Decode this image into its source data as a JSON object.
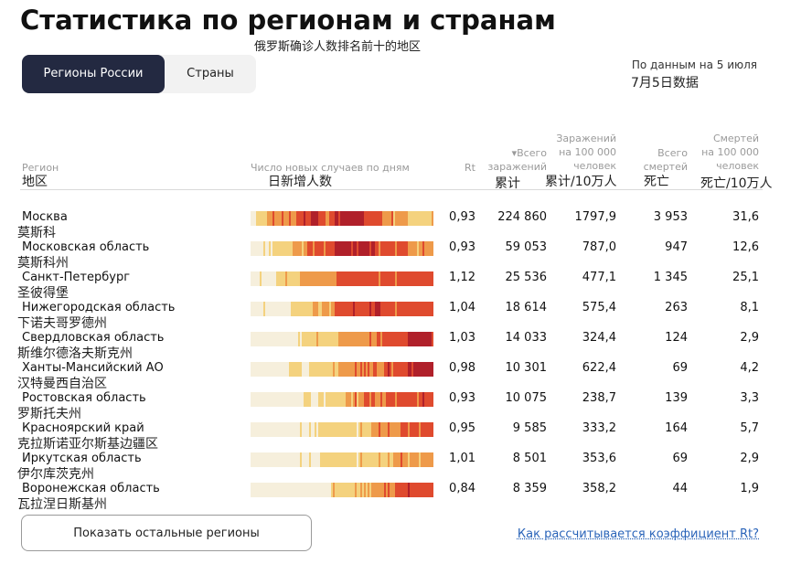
{
  "title": "Статистика по регионам и странам",
  "subtitle_cn": "俄罗斯确诊人数排名前十的地区",
  "tabs": [
    {
      "label": "Регионы России",
      "active": true
    },
    {
      "label": "Страны",
      "active": false
    }
  ],
  "date_note": "По данным на 5 июля",
  "date_note_cn": "7月5日数据",
  "columns": {
    "region": "Регион",
    "region_cn": "地区",
    "daily": "Число новых случаев по дням",
    "daily_cn": "日新增人数",
    "rt": "Rt",
    "total_line1": "▾Всего",
    "total_line2": "заражений",
    "total_cn": "累计",
    "per100k_line1": "Заражений",
    "per100k_line2": "на 100 000",
    "per100k_line3": "человек",
    "per100k_cn": "累计/10万人",
    "deaths_line1": "Всего",
    "deaths_line2": "смертей",
    "deaths_cn": "死亡",
    "dper100k_line1": "Смертей",
    "dper100k_line2": "на 100 000",
    "dper100k_line3": "человек",
    "dper100k_cn": "死亡/10万人"
  },
  "colors": {
    "light": "#f6efdc",
    "yellow": "#f4d27e",
    "orange": "#ee9a4a",
    "red": "#df4a2e",
    "dark": "#b0202a"
  },
  "rows": [
    {
      "name": "Москва",
      "name_cn": "莫斯科",
      "rt": "0,93",
      "total": "224 860",
      "per100k": "1797,9",
      "deaths": "3 953",
      "dper100k": "31,6",
      "profile": [
        0,
        1,
        2,
        2,
        2,
        3,
        3,
        4,
        3,
        3,
        4,
        4,
        4,
        3,
        3,
        2,
        2,
        2,
        1,
        1,
        1
      ]
    },
    {
      "name": "Московская область",
      "name_cn": "莫斯科州",
      "rt": "0,93",
      "total": "59 053",
      "per100k": "787,0",
      "deaths": "947",
      "dper100k": "12,6",
      "profile": [
        0,
        0,
        1,
        1,
        1,
        2,
        2,
        3,
        3,
        3,
        4,
        4,
        4,
        4,
        3,
        3,
        3,
        3,
        2,
        2,
        2
      ]
    },
    {
      "name": "Санкт-Петербург",
      "name_cn": "圣彼得堡",
      "rt": "1,12",
      "total": "25 536",
      "per100k": "477,1",
      "deaths": "1 345",
      "dper100k": "25,1",
      "profile": [
        0,
        0,
        0,
        1,
        1,
        1,
        2,
        2,
        2,
        2,
        3,
        3,
        3,
        3,
        3,
        3,
        3,
        3,
        3,
        3,
        3
      ]
    },
    {
      "name": "Нижегородская область",
      "name_cn": "下诺夫哥罗德州",
      "rt": "1,04",
      "total": "18 614",
      "per100k": "575,4",
      "deaths": "263",
      "dper100k": "8,1",
      "profile": [
        0,
        0,
        0,
        0,
        0,
        1,
        1,
        2,
        2,
        2,
        3,
        3,
        3,
        3,
        4,
        3,
        3,
        3,
        3,
        3,
        3
      ]
    },
    {
      "name": "Свердловская область",
      "name_cn": "斯维尔德洛夫斯克州",
      "rt": "1,03",
      "total": "14 033",
      "per100k": "324,4",
      "deaths": "124",
      "dper100k": "2,9",
      "profile": [
        0,
        0,
        0,
        0,
        0,
        0,
        1,
        1,
        1,
        1,
        2,
        2,
        2,
        2,
        3,
        3,
        3,
        3,
        4,
        4,
        4
      ]
    },
    {
      "name": "Ханты-Мансийский АО",
      "name_cn": "汉特曼西自治区",
      "rt": "0,98",
      "total": "10 301",
      "per100k": "622,4",
      "deaths": "69",
      "dper100k": "4,2",
      "profile": [
        0,
        0,
        0,
        0,
        0,
        1,
        0,
        1,
        1,
        1,
        2,
        2,
        2,
        3,
        2,
        3,
        3,
        3,
        4,
        4,
        4
      ]
    },
    {
      "name": "Ростовская область",
      "name_cn": "罗斯托夫州",
      "rt": "0,93",
      "total": "10 075",
      "per100k": "238,7",
      "deaths": "139",
      "dper100k": "3,3",
      "profile": [
        0,
        0,
        0,
        0,
        0,
        0,
        1,
        0,
        1,
        1,
        1,
        2,
        2,
        3,
        2,
        3,
        3,
        3,
        3,
        3,
        3
      ]
    },
    {
      "name": "Красноярский край",
      "name_cn": "克拉斯诺亚尔斯基边疆区",
      "rt": "0,95",
      "total": "9 585",
      "per100k": "333,2",
      "deaths": "164",
      "dper100k": "5,7",
      "profile": [
        0,
        0,
        0,
        0,
        0,
        0,
        0,
        1,
        1,
        1,
        1,
        1,
        1,
        1,
        2,
        2,
        2,
        3,
        3,
        3,
        3
      ]
    },
    {
      "name": "Иркутская область",
      "name_cn": "伊尔库茨克州",
      "rt": "1,01",
      "total": "8 501",
      "per100k": "353,6",
      "deaths": "69",
      "dper100k": "2,9",
      "profile": [
        0,
        0,
        0,
        0,
        0,
        0,
        0,
        0,
        1,
        1,
        1,
        1,
        1,
        1,
        1,
        1,
        2,
        2,
        2,
        2,
        2
      ]
    },
    {
      "name": "Воронежская область",
      "name_cn": "瓦拉涅日斯基州",
      "rt": "0,84",
      "total": "8 359",
      "per100k": "358,2",
      "deaths": "44",
      "dper100k": "1,9",
      "profile": [
        0,
        0,
        0,
        0,
        0,
        0,
        0,
        0,
        0,
        1,
        1,
        1,
        1,
        2,
        2,
        2,
        3,
        3,
        3,
        3,
        3
      ]
    }
  ],
  "footer": {
    "more_button": "Показать остальные регионы",
    "rt_link": "Как рассчитывается коэффициент Rt?"
  }
}
